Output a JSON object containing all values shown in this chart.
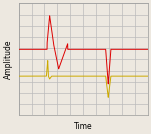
{
  "background_color": "#ede8e0",
  "grid_color": "#bbbbbb",
  "xlabel": "Time",
  "ylabel": "Amplitude",
  "xlim": [
    0,
    100
  ],
  "ylim": [
    -1.0,
    1.0
  ],
  "red_line_color": "#dd0000",
  "yellow_line_color": "#ccaa00",
  "figsize": [
    1.51,
    1.34
  ],
  "dpi": 100
}
